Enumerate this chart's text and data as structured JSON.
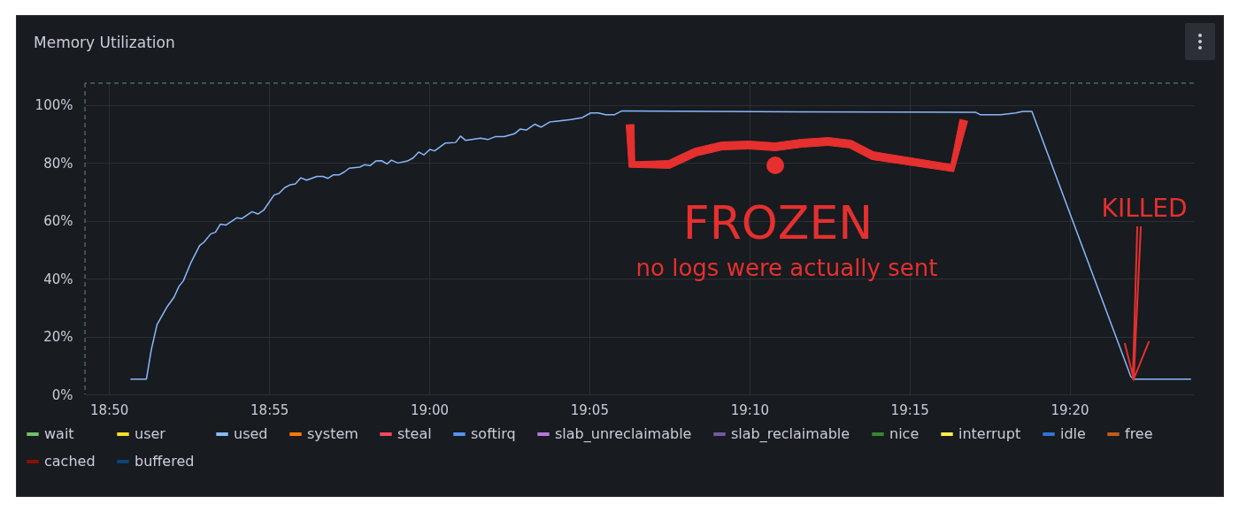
{
  "chart_data": {
    "type": "line",
    "title": "Memory Utilization",
    "series": [
      {
        "name": "wait",
        "color": "#73bf69"
      },
      {
        "name": "user",
        "color": "#fade2a"
      },
      {
        "name": "used",
        "color": "#8ab8ff",
        "x": [
          18.8445,
          18.8528,
          18.8553,
          18.8583,
          18.8633,
          18.8672,
          18.8697,
          18.872,
          18.8758,
          18.8805,
          18.8828,
          18.8862,
          18.8887,
          18.8913,
          18.8943,
          18.8998,
          18.9025,
          18.9078,
          18.9108,
          18.9138,
          18.9193,
          18.9218,
          18.9247,
          18.9277,
          18.9303,
          18.9332,
          18.9362,
          18.9415,
          18.9447,
          18.9473,
          18.95,
          18.953,
          18.9558,
          18.9583,
          18.9638,
          18.9663,
          18.9692,
          18.9722,
          18.9752,
          18.978,
          18.9803,
          18.9837,
          18.9887,
          18.9917,
          18.9945,
          18.9972,
          19.0003,
          19.0028,
          19.0083,
          19.0137,
          19.0163,
          19.019,
          19.0267,
          19.0305,
          19.0343,
          19.039,
          19.0443,
          19.0473,
          19.0505,
          19.055,
          19.0582,
          19.0628,
          19.0658,
          19.0735,
          19.0797,
          19.084,
          19.088,
          19.0918,
          19.0965,
          19.1003,
          19.1917,
          19.25,
          19.2845,
          19.2868,
          19.2975,
          19.3052,
          19.309,
          19.3137,
          19.3652,
          19.3667,
          19.3965
        ],
        "values": [
          5.3,
          5.3,
          15.3,
          24.1,
          30.0,
          33.6,
          37.3,
          39.2,
          45.3,
          51.4,
          52.6,
          55.4,
          56.0,
          58.8,
          58.5,
          61.0,
          60.7,
          63.1,
          62.3,
          63.6,
          68.9,
          69.4,
          71.4,
          72.4,
          72.7,
          74.8,
          74.0,
          75.3,
          75.3,
          74.6,
          75.8,
          75.8,
          76.8,
          78.1,
          78.5,
          79.3,
          79.0,
          80.6,
          80.7,
          79.6,
          80.9,
          79.9,
          80.6,
          81.7,
          83.7,
          82.7,
          84.6,
          84.1,
          86.8,
          87.0,
          89.2,
          87.7,
          88.5,
          88.0,
          89.0,
          89.0,
          90.0,
          91.6,
          91.3,
          93.3,
          92.3,
          94.1,
          94.3,
          94.9,
          95.6,
          97.2,
          97.2,
          96.6,
          96.6,
          97.9,
          97.6,
          97.5,
          97.4,
          96.6,
          96.6,
          97.2,
          97.7,
          97.7,
          6.1,
          5.3,
          5.3
        ]
      },
      {
        "name": "system",
        "color": "#ff780a"
      },
      {
        "name": "steal",
        "color": "#f2495c"
      },
      {
        "name": "softirq",
        "color": "#5794f2"
      },
      {
        "name": "slab_unreclaimable",
        "color": "#b877d9"
      },
      {
        "name": "slab_reclaimable",
        "color": "#705da0"
      },
      {
        "name": "nice",
        "color": "#37872d"
      },
      {
        "name": "interrupt",
        "color": "#ffee52"
      },
      {
        "name": "idle",
        "color": "#3274d9"
      },
      {
        "name": "free",
        "color": "#c15c17"
      },
      {
        "name": "cached",
        "color": "#890f02"
      },
      {
        "name": "buffered",
        "color": "#0a437c"
      }
    ],
    "xlim": [
      18.8208,
      19.398
    ],
    "xticks": [
      {
        "value": 18.8333,
        "label": "18:50"
      },
      {
        "value": 18.9167,
        "label": "18:55"
      },
      {
        "value": 19.0,
        "label": "19:00"
      },
      {
        "value": 19.0833,
        "label": "19:05"
      },
      {
        "value": 19.1667,
        "label": "19:10"
      },
      {
        "value": 19.25,
        "label": "19:15"
      },
      {
        "value": 19.3333,
        "label": "19:20"
      }
    ],
    "ylim": [
      0,
      107.5
    ],
    "yticks": [
      {
        "value": 0,
        "label": "0%"
      },
      {
        "value": 20,
        "label": "20%"
      },
      {
        "value": 40,
        "label": "40%"
      },
      {
        "value": 60,
        "label": "60%"
      },
      {
        "value": 80,
        "label": "80%"
      },
      {
        "value": 100,
        "label": "100%"
      }
    ],
    "ref_lines": [
      {
        "axis": "y",
        "value": 107.5,
        "color": "#5e8a93",
        "line_style": "dashed"
      },
      {
        "axis": "x",
        "value": 18.8208,
        "color": "#5e8a93",
        "line_style": "dashed"
      }
    ],
    "annotations": [
      "FROZEN",
      "no logs were actually sent",
      {
        "text": "KILLED",
        "x": 19.3667,
        "y": 5.3
      }
    ],
    "grid": true,
    "legend": "bottom",
    "marker": "none",
    "line_style": "solid"
  }
}
